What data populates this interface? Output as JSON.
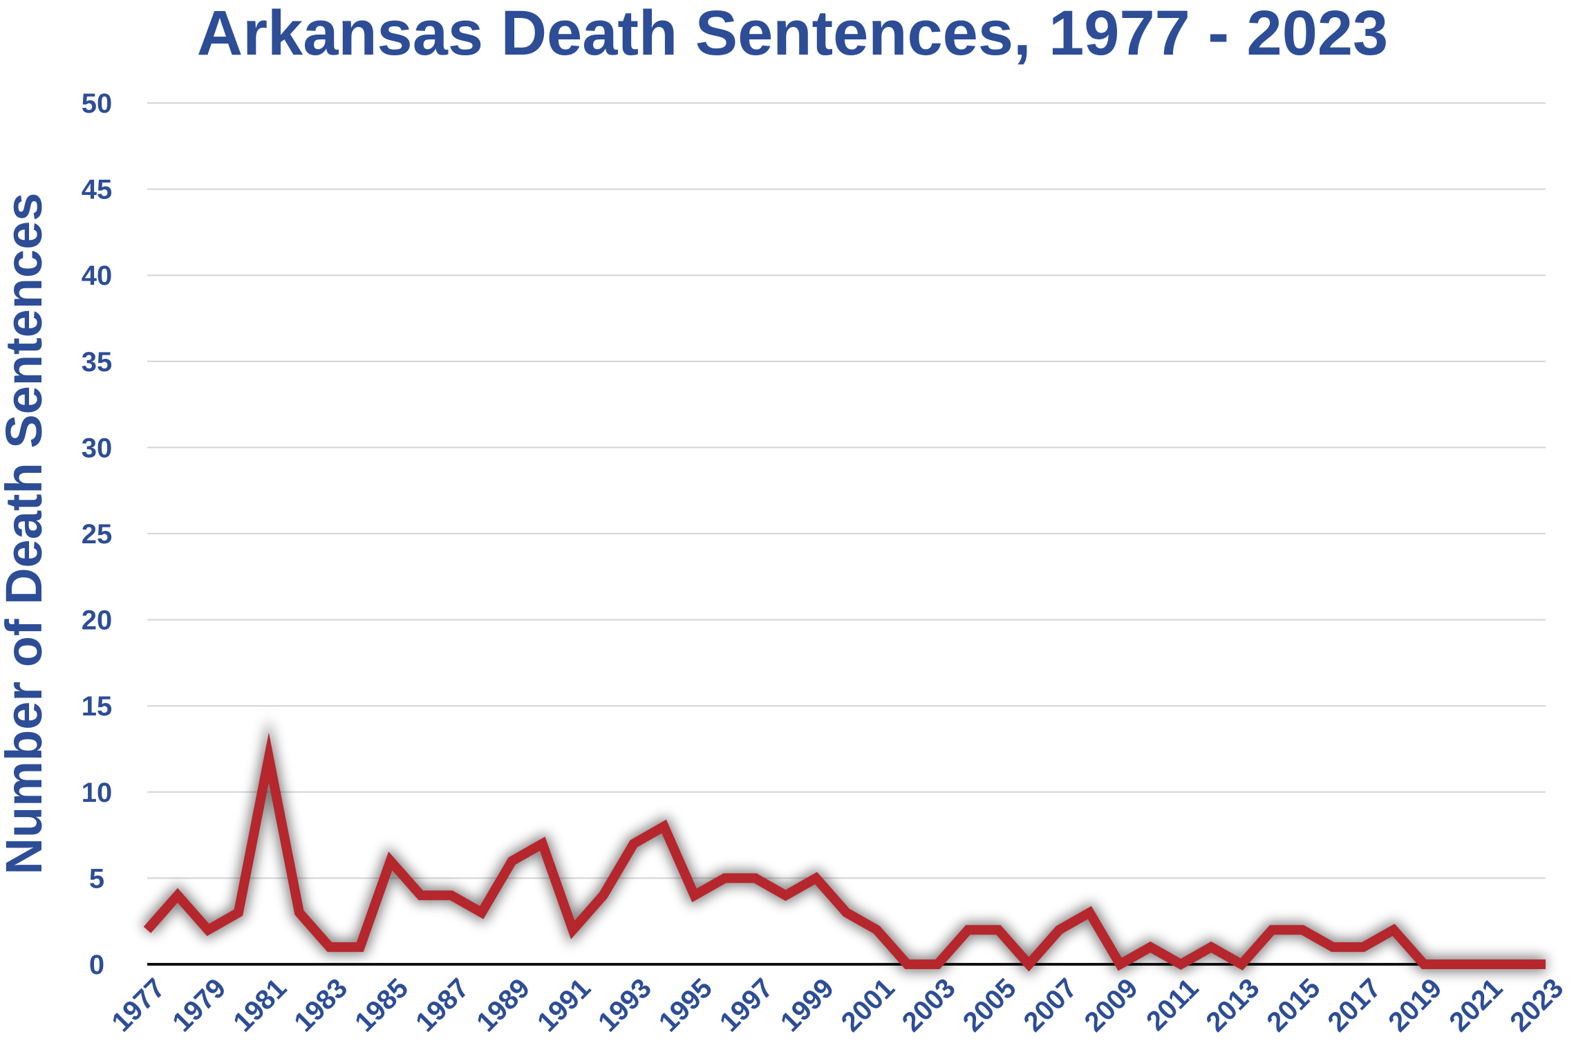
{
  "chart_data": {
    "type": "line",
    "title": "Arkansas Death Sentences, 1977 - 2023",
    "xlabel": "",
    "ylabel": "Number of Death Sentences",
    "x": [
      1977,
      1978,
      1979,
      1980,
      1981,
      1982,
      1983,
      1984,
      1985,
      1986,
      1987,
      1988,
      1989,
      1990,
      1991,
      1992,
      1993,
      1994,
      1995,
      1996,
      1997,
      1998,
      1999,
      2000,
      2001,
      2002,
      2003,
      2004,
      2005,
      2006,
      2007,
      2008,
      2009,
      2010,
      2011,
      2012,
      2013,
      2014,
      2015,
      2016,
      2017,
      2018,
      2019,
      2020,
      2021,
      2022,
      2023
    ],
    "x_tick_labels": [
      "1977",
      "1979",
      "1981",
      "1983",
      "1985",
      "1987",
      "1989",
      "1991",
      "1993",
      "1995",
      "1997",
      "1999",
      "2001",
      "2003",
      "2005",
      "2007",
      "2009",
      "2011",
      "2013",
      "2015",
      "2017",
      "2019",
      "2021",
      "2023"
    ],
    "series": [
      {
        "values": [
          2,
          4,
          2,
          3,
          12,
          3,
          1,
          1,
          6,
          4,
          4,
          3,
          6,
          7,
          2,
          4,
          7,
          8,
          4,
          5,
          5,
          4,
          5,
          3,
          2,
          0,
          0,
          2,
          2,
          0,
          2,
          3,
          0,
          1,
          0,
          1,
          0,
          2,
          2,
          1,
          1,
          2,
          0,
          0,
          0,
          0,
          0
        ]
      }
    ],
    "ylim": [
      0,
      50
    ],
    "y_ticks": [
      0,
      5,
      10,
      15,
      20,
      25,
      30,
      35,
      40,
      45,
      50
    ],
    "grid": true,
    "legend": "none",
    "colors": {
      "line": "#b5262d",
      "text": "#2d4d96",
      "grid": "#d4d4d4",
      "axis": "#111111"
    }
  }
}
